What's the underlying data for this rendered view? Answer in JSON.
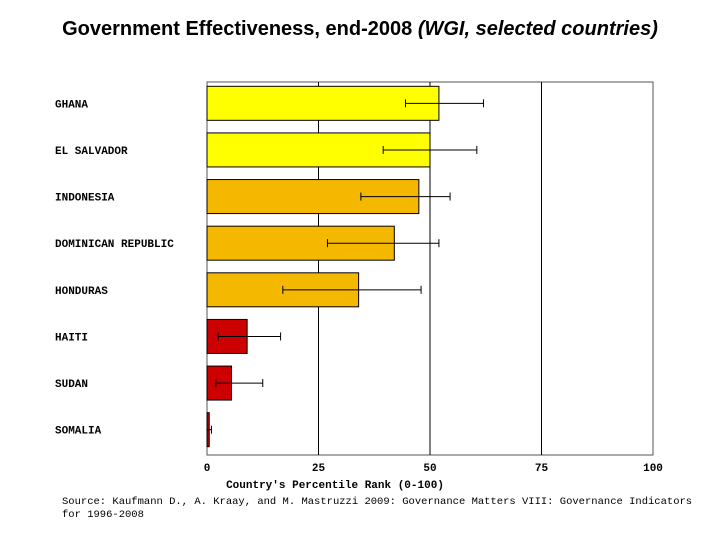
{
  "title": {
    "main": "Government Effectiveness, end-2008",
    "sub": "(WGI, selected countries)"
  },
  "source": "Source: Kaufmann D., A. Kraay, and M. Mastruzzi 2009: Governance Matters VIII: Governance Indicators for 1996-2008",
  "colors": {
    "yellow": "#ffff00",
    "orange": "#f5b800",
    "red": "#cc0000"
  },
  "chart_data": {
    "type": "bar",
    "orientation": "horizontal",
    "xlabel": "Country's Percentile Rank (0-100)",
    "xlim": [
      0,
      100
    ],
    "xticks": [
      0,
      25,
      50,
      75,
      100
    ],
    "grid": "vertical lines at ticks",
    "categories": [
      "GHANA",
      "EL SALVADOR",
      "INDONESIA",
      "DOMINICAN REPUBLIC",
      "HONDURAS",
      "HAITI",
      "SUDAN",
      "SOMALIA"
    ],
    "values": [
      52,
      50,
      47.5,
      42,
      34,
      9,
      5.5,
      0.5
    ],
    "error_low": [
      44.5,
      39.5,
      34.5,
      27,
      17,
      2.5,
      2,
      0
    ],
    "error_high": [
      62,
      60.5,
      54.5,
      52,
      48,
      16.5,
      12.5,
      1
    ],
    "bar_colors": [
      "yellow",
      "yellow",
      "orange",
      "orange",
      "orange",
      "red",
      "red",
      "red"
    ]
  }
}
